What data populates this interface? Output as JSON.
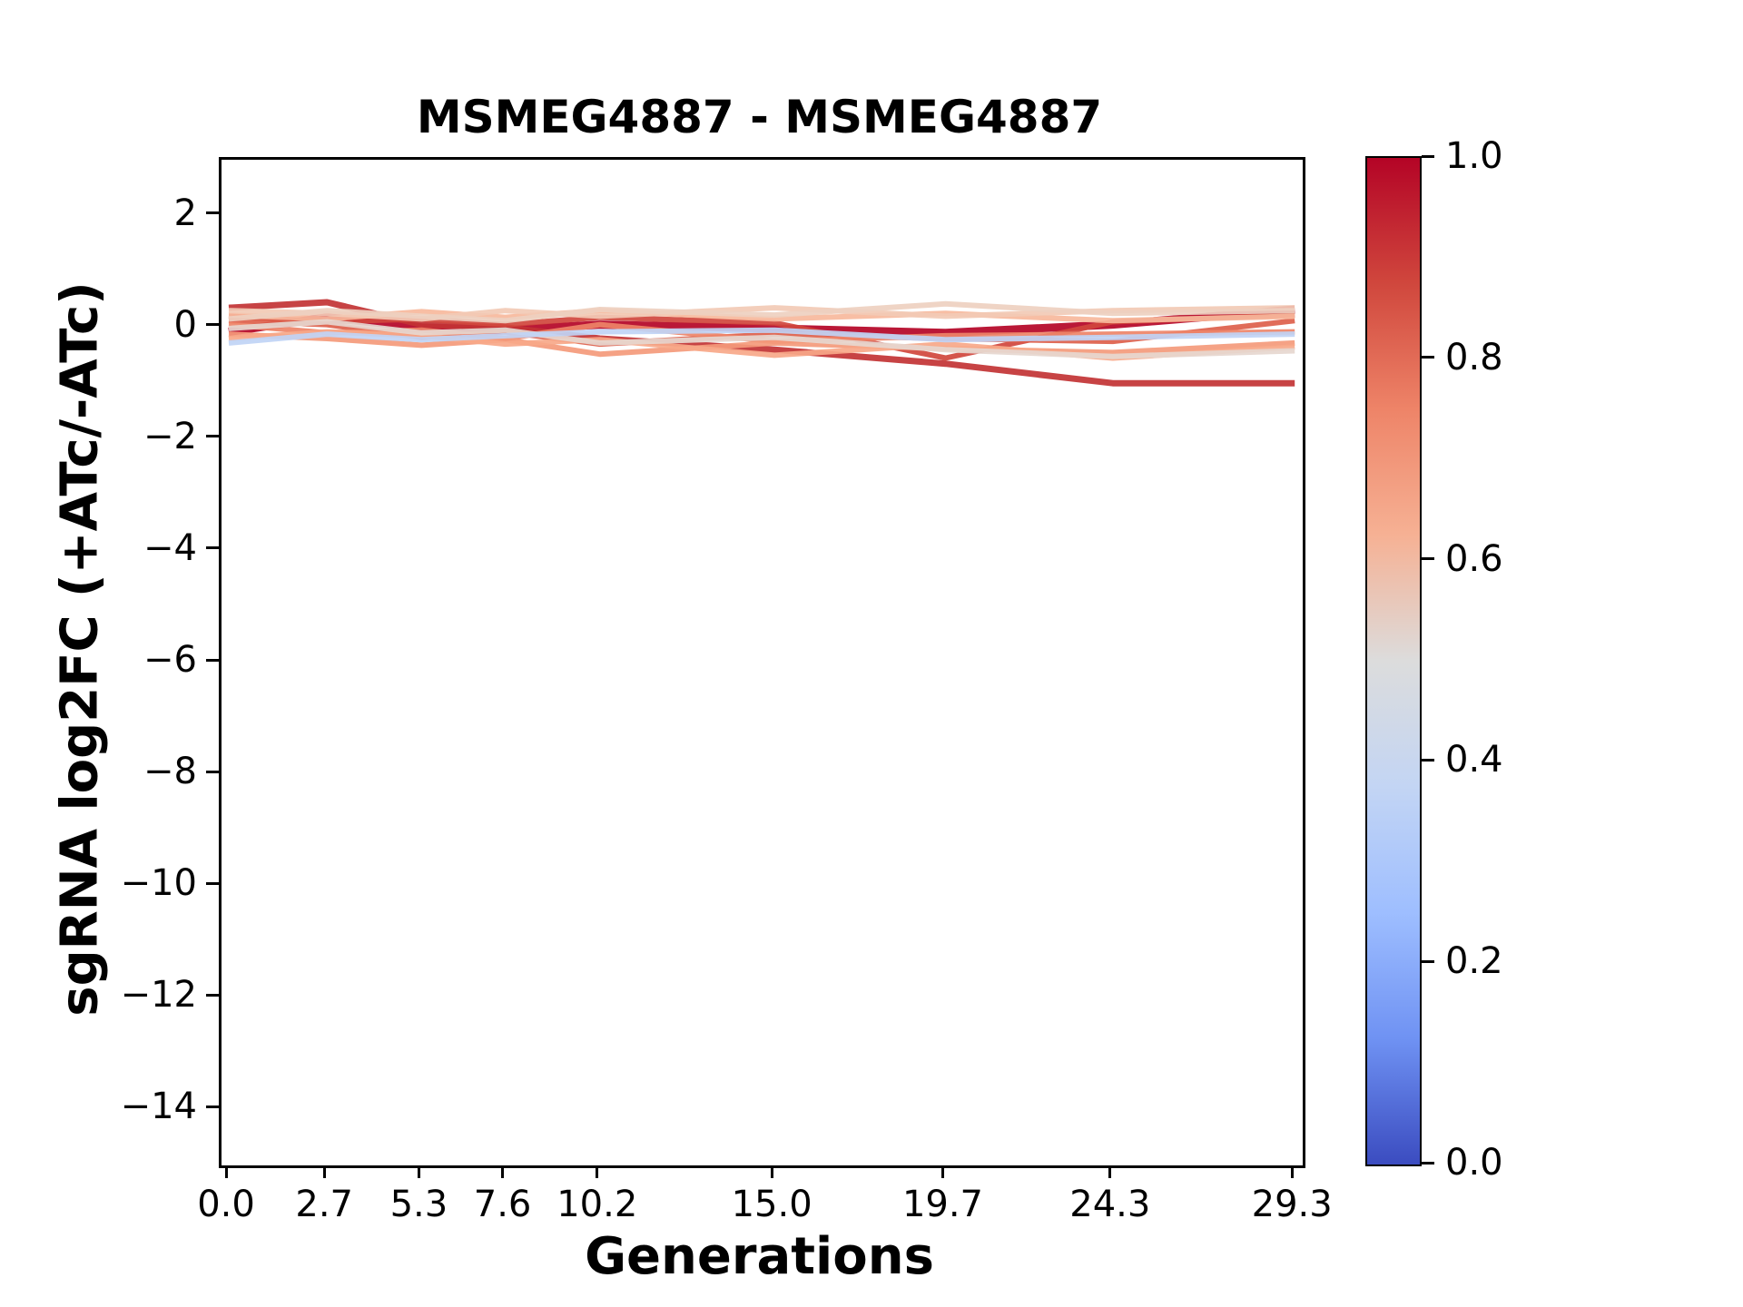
{
  "chart_data": {
    "type": "line",
    "title": "MSMEG4887 - MSMEG4887",
    "xlabel": "Generations",
    "ylabel": "sgRNA log2FC (+ATc/-ATc)",
    "x": [
      0.0,
      2.7,
      5.3,
      7.6,
      10.2,
      15.0,
      19.7,
      24.3,
      29.3
    ],
    "xtick_labels": [
      "0.0",
      "2.7",
      "5.3",
      "7.6",
      "10.2",
      "15.0",
      "19.7",
      "24.3",
      "29.3"
    ],
    "ytick_values": [
      2,
      0,
      -2,
      -4,
      -6,
      -8,
      -10,
      -12,
      -14
    ],
    "ytick_labels": [
      "2",
      "0",
      "−2",
      "−4",
      "−6",
      "−8",
      "−10",
      "−12",
      "−14"
    ],
    "xlim": [
      -0.2,
      29.52
    ],
    "ylim": [
      -15,
      3
    ],
    "grid": false,
    "legend": "none (colorbar encodes series value)",
    "series": [
      {
        "colormap_value": 1.0,
        "color": "#b40426",
        "line_width": 9,
        "values": [
          -0.08,
          0.18,
          0.0,
          -0.05,
          0.05,
          -0.02,
          -0.1,
          0.05,
          0.32
        ]
      },
      {
        "colormap_value": 0.95,
        "color": "#c23334",
        "line_width": 7,
        "values": [
          0.35,
          0.45,
          0.05,
          0.0,
          -0.2,
          -0.4,
          -0.65,
          -1.0,
          -1.0
        ]
      },
      {
        "colormap_value": 0.9,
        "color": "#d0473d",
        "line_width": 6,
        "values": [
          0.2,
          0.1,
          0.15,
          0.05,
          0.18,
          0.08,
          -0.55,
          0.1,
          0.22
        ]
      },
      {
        "colormap_value": 0.87,
        "color": "#dd5f4b",
        "line_width": 6,
        "values": [
          0.12,
          0.05,
          -0.18,
          -0.08,
          -0.3,
          -0.12,
          -0.2,
          -0.25,
          0.12
        ]
      },
      {
        "colormap_value": 0.8,
        "color": "#ee8468",
        "line_width": 6,
        "values": [
          0.05,
          -0.1,
          -0.05,
          -0.2,
          0.05,
          -0.25,
          -0.15,
          -0.12,
          -0.08
        ]
      },
      {
        "colormap_value": 0.75,
        "color": "#f49a7b",
        "line_width": 6,
        "values": [
          -0.12,
          -0.2,
          -0.32,
          -0.22,
          -0.48,
          -0.28,
          -0.38,
          -0.45,
          -0.28
        ]
      },
      {
        "colormap_value": 0.7,
        "color": "#f7a889",
        "line_width": 6,
        "values": [
          -0.2,
          -0.08,
          -0.15,
          -0.3,
          -0.22,
          -0.5,
          -0.3,
          -0.55,
          -0.35
        ]
      },
      {
        "colormap_value": 0.65,
        "color": "#f7b89c",
        "line_width": 6,
        "values": [
          0.22,
          0.15,
          0.28,
          0.18,
          0.3,
          0.15,
          0.25,
          0.12,
          0.2
        ]
      },
      {
        "colormap_value": 0.6,
        "color": "#f2cab5",
        "line_width": 6,
        "values": [
          0.3,
          0.25,
          0.15,
          0.3,
          0.2,
          0.35,
          0.2,
          0.3,
          0.35
        ]
      },
      {
        "colormap_value": 0.57,
        "color": "#eed0c0",
        "line_width": 6,
        "values": [
          0.15,
          0.3,
          0.2,
          0.12,
          0.32,
          0.22,
          0.42,
          0.25,
          0.3
        ]
      },
      {
        "colormap_value": 0.55,
        "color": "#e6d7cf",
        "line_width": 6,
        "values": [
          -0.02,
          0.1,
          -0.1,
          -0.05,
          -0.28,
          -0.18,
          -0.4,
          -0.52,
          -0.42
        ]
      },
      {
        "colormap_value": 0.42,
        "color": "#c0d4f5",
        "line_width": 6,
        "values": [
          -0.28,
          -0.12,
          -0.22,
          -0.15,
          -0.08,
          -0.05,
          -0.22,
          -0.18,
          -0.12
        ]
      }
    ],
    "colorbar": {
      "orientation": "vertical",
      "range": [
        0.0,
        1.0
      ],
      "tick_labels": [
        "1.0",
        "0.8",
        "0.6",
        "0.4",
        "0.2",
        "0.0"
      ],
      "tick_values": [
        1.0,
        0.8,
        0.6,
        0.4,
        0.2,
        0.0
      ],
      "cmap_name": "coolwarm",
      "gradient_top_to_bottom": [
        [
          0.0,
          "#b40426"
        ],
        [
          0.125,
          "#d0473d"
        ],
        [
          0.25,
          "#ee8468"
        ],
        [
          0.375,
          "#f6b194"
        ],
        [
          0.5,
          "#dcdcdc"
        ],
        [
          0.625,
          "#c3d5f4"
        ],
        [
          0.75,
          "#9ebeff"
        ],
        [
          0.875,
          "#6f92f3"
        ],
        [
          1.0,
          "#3b4cc0"
        ]
      ]
    }
  }
}
